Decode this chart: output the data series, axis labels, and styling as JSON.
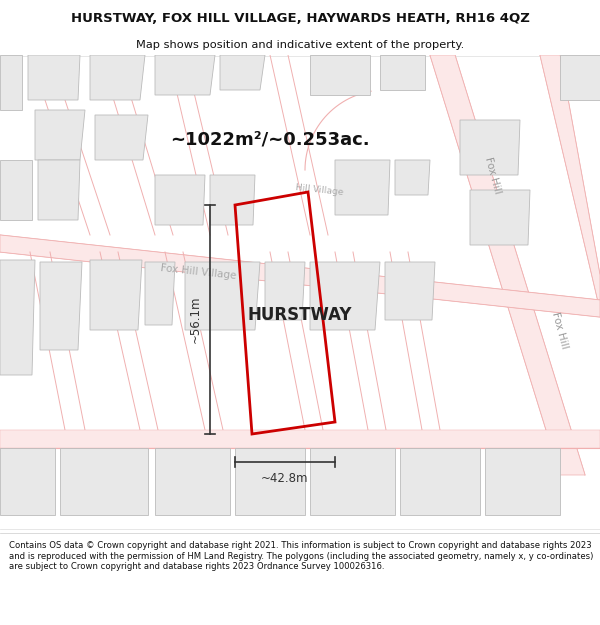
{
  "title_line1": "HURSTWAY, FOX HILL VILLAGE, HAYWARDS HEATH, RH16 4QZ",
  "title_line2": "Map shows position and indicative extent of the property.",
  "area_text": "~1022m²/~0.253ac.",
  "property_label": "HURSTWAY",
  "dim_width": "~42.8m",
  "dim_height": "~56.1m",
  "footer_text": "Contains OS data © Crown copyright and database right 2021. This information is subject to Crown copyright and database rights 2023 and is reproduced with the permission of HM Land Registry. The polygons (including the associated geometry, namely x, y co-ordinates) are subject to Crown copyright and database rights 2023 Ordnance Survey 100026316.",
  "map_bg": "#ffffff",
  "road_line_color": "#f0b0b0",
  "road_fill_color": "#fce8e8",
  "plot_outline_color": "#cc0000",
  "block_fill": "#e8e8e8",
  "block_outline": "#bbbbbb",
  "text_color": "#111111",
  "road_label_color": "#aaaaaa",
  "footer_bg": "#ffffff",
  "header_bg": "#ffffff",
  "dim_line_color": "#333333"
}
